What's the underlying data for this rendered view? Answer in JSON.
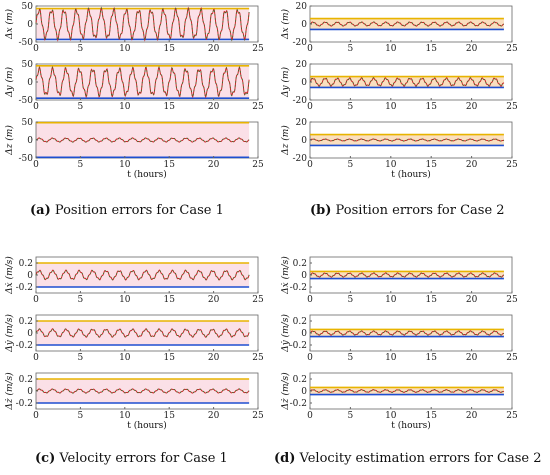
{
  "figure": {
    "panels": [
      {
        "id": "a",
        "label": "(a)",
        "caption": "Position errors for Case 1"
      },
      {
        "id": "b",
        "label": "(b)",
        "caption": "Position errors for Case 2"
      },
      {
        "id": "c",
        "label": "(c)",
        "caption": "Velocity errors for Case 1"
      },
      {
        "id": "d",
        "label": "(d)",
        "caption": "Velocity estimation errors for Case 2"
      }
    ],
    "colors": {
      "error": "#c62828",
      "estimate": "#2e7d32",
      "upper_bound": "#e8b400",
      "lower_bound": "#1f4fd0",
      "band": "#f7c6d4",
      "band_alt": "#f5c58a"
    }
  },
  "chart_data": [
    {
      "panel": "a",
      "type": "line",
      "ylabel": "Δx (m)",
      "xlabel": "",
      "xlim": [
        0,
        25
      ],
      "ylim": [
        -50,
        50
      ],
      "xticks": [
        "0",
        "5",
        "10",
        "15",
        "20",
        "25"
      ],
      "yticks": [
        "50",
        "0",
        "-50"
      ],
      "series": [
        {
          "amplitude": 38,
          "period_hours": 1.4
        }
      ],
      "bounds": [
        43,
        -43
      ]
    },
    {
      "panel": "a",
      "type": "line",
      "ylabel": "Δy (m)",
      "xlabel": "",
      "xlim": [
        0,
        25
      ],
      "ylim": [
        -50,
        50
      ],
      "xticks": [
        "0",
        "5",
        "10",
        "15",
        "20",
        "25"
      ],
      "yticks": [
        "50",
        "0",
        "-50"
      ],
      "series": [
        {
          "amplitude": 35,
          "period_hours": 1.5
        }
      ],
      "bounds": [
        45,
        -45
      ]
    },
    {
      "panel": "a",
      "type": "line",
      "ylabel": "Δz (m)",
      "xlabel": "t (hours)",
      "xlim": [
        0,
        25
      ],
      "ylim": [
        -50,
        50
      ],
      "xticks": [
        "0",
        "5",
        "10",
        "15",
        "20",
        "25"
      ],
      "yticks": [
        "50",
        "0",
        "-50"
      ],
      "series": [
        {
          "amplitude": 5,
          "period_hours": 1.5
        }
      ],
      "bounds": [
        48,
        -48
      ]
    },
    {
      "panel": "b",
      "type": "line",
      "ylabel": "Δx (m)",
      "xlabel": "",
      "xlim": [
        0,
        25
      ],
      "ylim": [
        -20,
        20
      ],
      "xticks": [
        "0",
        "5",
        "10",
        "15",
        "20",
        "25"
      ],
      "yticks": [
        "20",
        "0",
        "-20"
      ],
      "series": [
        {
          "amplitude": 2,
          "period_hours": 1.5
        }
      ],
      "bounds": [
        6,
        -6
      ]
    },
    {
      "panel": "b",
      "type": "line",
      "ylabel": "Δy (m)",
      "xlabel": "",
      "xlim": [
        0,
        25
      ],
      "ylim": [
        -20,
        20
      ],
      "xticks": [
        "0",
        "5",
        "10",
        "15",
        "20",
        "25"
      ],
      "yticks": [
        "20",
        "0",
        "-20"
      ],
      "series": [
        {
          "amplitude": 4,
          "period_hours": 1.5
        }
      ],
      "bounds": [
        6,
        -6
      ]
    },
    {
      "panel": "b",
      "type": "line",
      "ylabel": "Δz (m)",
      "xlabel": "t (hours)",
      "xlim": [
        0,
        25
      ],
      "ylim": [
        -20,
        20
      ],
      "xticks": [
        "0",
        "5",
        "10",
        "15",
        "20",
        "25"
      ],
      "yticks": [
        "20",
        "0",
        "-20"
      ],
      "series": [
        {
          "amplitude": 1,
          "period_hours": 1.5
        }
      ],
      "bounds": [
        6,
        -6
      ]
    },
    {
      "panel": "c",
      "type": "line",
      "ylabel": "Δẋ (m/s)",
      "xlabel": "",
      "xlim": [
        0,
        25
      ],
      "ylim": [
        -0.3,
        0.3
      ],
      "xticks": [
        "0",
        "5",
        "10",
        "15",
        "20",
        "25"
      ],
      "yticks": [
        "0.2",
        "0",
        "-0.2"
      ],
      "series": [
        {
          "amplitude": 0.07,
          "period_hours": 1.5
        }
      ],
      "bounds": [
        0.2,
        -0.2
      ]
    },
    {
      "panel": "c",
      "type": "line",
      "ylabel": "Δẏ (m/s)",
      "xlabel": "",
      "xlim": [
        0,
        25
      ],
      "ylim": [
        -0.3,
        0.3
      ],
      "xticks": [
        "0",
        "5",
        "10",
        "15",
        "20",
        "25"
      ],
      "yticks": [
        "0.2",
        "0",
        "-0.2"
      ],
      "series": [
        {
          "amplitude": 0.06,
          "period_hours": 1.5
        }
      ],
      "bounds": [
        0.2,
        -0.2
      ]
    },
    {
      "panel": "c",
      "type": "line",
      "ylabel": "Δż (m/s)",
      "xlabel": "t (hours)",
      "xlim": [
        0,
        25
      ],
      "ylim": [
        -0.3,
        0.3
      ],
      "xticks": [
        "0",
        "5",
        "10",
        "15",
        "20",
        "25"
      ],
      "yticks": [
        "0.2",
        "0",
        "-0.2"
      ],
      "series": [
        {
          "amplitude": 0.03,
          "period_hours": 1.5
        }
      ],
      "bounds": [
        0.2,
        -0.2
      ]
    },
    {
      "panel": "d",
      "type": "line",
      "ylabel": "Δẋ (m/s)",
      "xlabel": "",
      "xlim": [
        0,
        25
      ],
      "ylim": [
        -0.3,
        0.3
      ],
      "xticks": [
        "0",
        "5",
        "10",
        "15",
        "20",
        "25"
      ],
      "yticks": [
        "0.2",
        "0",
        "-0.2"
      ],
      "series": [
        {
          "amplitude": 0.03,
          "period_hours": 1.5
        }
      ],
      "bounds": [
        0.06,
        -0.06
      ]
    },
    {
      "panel": "d",
      "type": "line",
      "ylabel": "Δẏ (m/s)",
      "xlabel": "",
      "xlim": [
        0,
        25
      ],
      "ylim": [
        -0.3,
        0.3
      ],
      "xticks": [
        "0",
        "5",
        "10",
        "15",
        "20",
        "25"
      ],
      "yticks": [
        "0.2",
        "0",
        "-0.2"
      ],
      "series": [
        {
          "amplitude": 0.03,
          "period_hours": 1.5
        }
      ],
      "bounds": [
        0.06,
        -0.06
      ]
    },
    {
      "panel": "d",
      "type": "line",
      "ylabel": "Δż (m/s)",
      "xlabel": "t (hours)",
      "xlim": [
        0,
        25
      ],
      "ylim": [
        -0.3,
        0.3
      ],
      "xticks": [
        "0",
        "5",
        "10",
        "15",
        "20",
        "25"
      ],
      "yticks": [
        "0.2",
        "0",
        "-0.2"
      ],
      "series": [
        {
          "amplitude": 0.02,
          "period_hours": 1.5
        }
      ],
      "bounds": [
        0.06,
        -0.06
      ]
    }
  ]
}
